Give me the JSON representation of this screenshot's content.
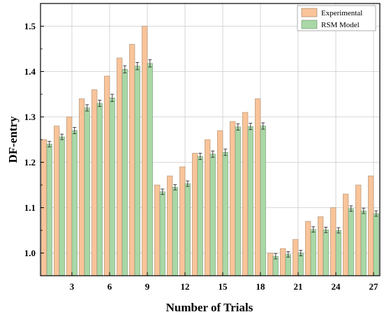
{
  "chart_data": {
    "type": "bar",
    "xlabel": "Number of Trials",
    "ylabel": "DF-entry",
    "ylim": [
      0.95,
      1.55
    ],
    "yticks": [
      1.0,
      1.1,
      1.2,
      1.3,
      1.4,
      1.5
    ],
    "ytick_labels": [
      "1.0",
      "1.1",
      "1.2",
      "1.3",
      "1.4",
      "1.5"
    ],
    "x": [
      1,
      2,
      3,
      4,
      5,
      6,
      7,
      8,
      9,
      10,
      11,
      12,
      13,
      14,
      15,
      16,
      17,
      18,
      19,
      20,
      21,
      22,
      23,
      24,
      25,
      26,
      27
    ],
    "xticks": [
      3,
      6,
      9,
      12,
      15,
      18,
      21,
      24,
      27
    ],
    "xtick_labels": [
      "3",
      "6",
      "9",
      "12",
      "15",
      "18",
      "21",
      "24",
      "27"
    ],
    "grid": true,
    "legend_position": "top-right",
    "series": [
      {
        "name": "Experimental",
        "color": "#f9c49a",
        "values": [
          1.25,
          1.28,
          1.3,
          1.34,
          1.36,
          1.39,
          1.43,
          1.46,
          1.5,
          1.15,
          1.17,
          1.19,
          1.22,
          1.25,
          1.27,
          1.29,
          1.31,
          1.34,
          1.0,
          1.01,
          1.03,
          1.07,
          1.08,
          1.1,
          1.13,
          1.15,
          1.17
        ]
      },
      {
        "name": "RSM Model",
        "color": "#a9d8a6",
        "values": [
          1.24,
          1.256,
          1.27,
          1.32,
          1.33,
          1.342,
          1.405,
          1.412,
          1.418,
          1.135,
          1.145,
          1.153,
          1.213,
          1.218,
          1.222,
          1.278,
          1.279,
          1.28,
          0.993,
          0.997,
          1.0,
          1.052,
          1.051,
          1.05,
          1.098,
          1.093,
          1.087
        ],
        "error": [
          0.006,
          0.006,
          0.007,
          0.007,
          0.007,
          0.008,
          0.008,
          0.008,
          0.008,
          0.006,
          0.006,
          0.006,
          0.007,
          0.007,
          0.007,
          0.007,
          0.007,
          0.007,
          0.006,
          0.006,
          0.006,
          0.006,
          0.006,
          0.006,
          0.006,
          0.006,
          0.006
        ]
      }
    ]
  }
}
